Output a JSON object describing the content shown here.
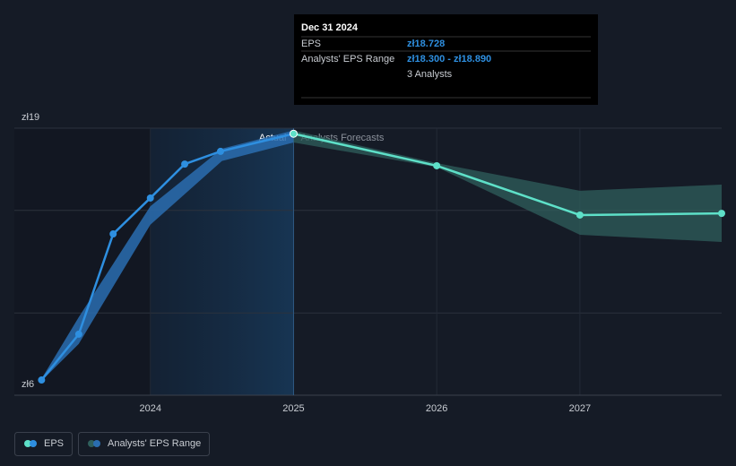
{
  "chart_data": {
    "type": "line",
    "xlim": [
      2023.05,
      2027.99
    ],
    "xticks": [
      2024,
      2025,
      2026,
      2027
    ],
    "ylim": [
      6,
      19
    ],
    "yticks": [
      {
        "value": 6,
        "label": "zł6"
      },
      {
        "value": 19,
        "label": "zł19"
      }
    ],
    "ygrid": [
      10,
      15
    ],
    "divider": 2025,
    "divider_labels": [
      "Actual",
      "Analysts Forecasts"
    ],
    "series": [
      {
        "name": "EPS",
        "color": "#2e8fe0",
        "forecast_color": "#5ee0c8",
        "x": [
          2023.24,
          2023.5,
          2023.74,
          2024,
          2024.24,
          2024.49,
          2025,
          2026,
          2027,
          2027.99
        ],
        "values": [
          6.74,
          8.97,
          13.85,
          15.6,
          17.25,
          17.87,
          18.728,
          17.17,
          14.77,
          14.85
        ]
      }
    ],
    "range": {
      "name": "Analysts' EPS Range",
      "color": "#2a6db0",
      "forecast_color": "#2f5f5c",
      "x": [
        2023.24,
        2023.5,
        2024,
        2024.5,
        2025,
        2026,
        2027,
        2027.99
      ],
      "low": [
        6.7,
        8.5,
        14.3,
        17.4,
        18.3,
        17.1,
        13.81,
        13.46
      ],
      "high": [
        6.8,
        9.8,
        15.2,
        18.0,
        18.89,
        17.3,
        15.95,
        16.25
      ]
    },
    "tooltip": {
      "date": "Dec 31 2024",
      "rows": [
        [
          "EPS",
          "zł18.728"
        ],
        [
          "Analysts' EPS Range",
          "zł18.300 - zł18.890"
        ],
        [
          "",
          "3 Analysts"
        ]
      ]
    }
  }
}
